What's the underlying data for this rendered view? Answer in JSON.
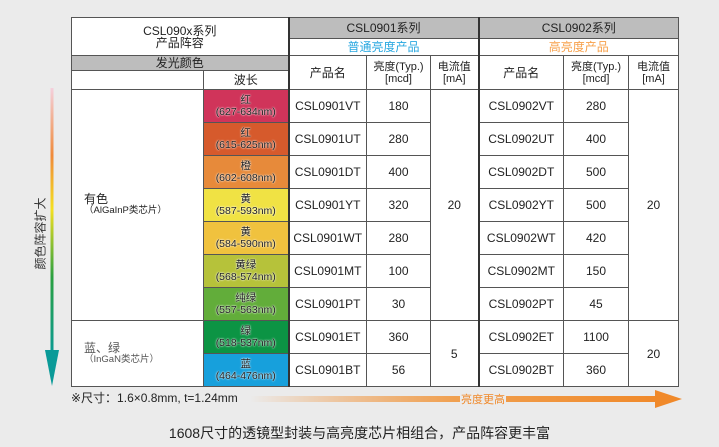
{
  "header": {
    "lineup_title": "CSL090x系列",
    "lineup_sub": "产品阵容",
    "color_label": "发光颜色",
    "wavelength_label": "波长",
    "series1": {
      "name": "CSL0901系列",
      "sub": "普通亮度产品",
      "sub_color": "#29a8e0"
    },
    "series2": {
      "name": "CSL0902系列",
      "sub": "高亮度产品",
      "sub_color": "#f7a04a"
    },
    "col_product": "产品名",
    "col_brightness": "亮度(Typ.)",
    "col_brightness_unit": "[mcd]",
    "col_current": "电流值",
    "col_current_unit": "[mA]"
  },
  "groups": [
    {
      "name": "有色",
      "chip": "（AlGaInP类芯片）"
    },
    {
      "name": "蓝、绿",
      "chip": "（InGaN类芯片）"
    }
  ],
  "rows": [
    {
      "color": "红",
      "wl": "(627-634nm)",
      "bg": "#d0345a",
      "p1": "CSL0901VT",
      "b1": "180",
      "p2": "CSL0902VT",
      "b2": "280"
    },
    {
      "color": "红",
      "wl": "(615-625nm)",
      "bg": "#d65a2c",
      "p1": "CSL0901UT",
      "b1": "280",
      "p2": "CSL0902UT",
      "b2": "400"
    },
    {
      "color": "橙",
      "wl": "(602-608nm)",
      "bg": "#e78a3a",
      "p1": "CSL0901DT",
      "b1": "400",
      "p2": "CSL0902DT",
      "b2": "500"
    },
    {
      "color": "黄",
      "wl": "(587-593nm)",
      "bg": "#f0e244",
      "p1": "CSL0901YT",
      "b1": "320",
      "p2": "CSL0902YT",
      "b2": "500"
    },
    {
      "color": "黄",
      "wl": "(584-590nm)",
      "bg": "#f0c23e",
      "p1": "CSL0901WT",
      "b1": "280",
      "p2": "CSL0902WT",
      "b2": "420"
    },
    {
      "color": "黄绿",
      "wl": "(568-574nm)",
      "bg": "#b6c23a",
      "p1": "CSL0901MT",
      "b1": "100",
      "p2": "CSL0902MT",
      "b2": "150"
    },
    {
      "color": "纯绿",
      "wl": "(557-563nm)",
      "bg": "#62ad3a",
      "p1": "CSL0901PT",
      "b1": "30",
      "p2": "CSL0902PT",
      "b2": "45"
    },
    {
      "color": "绿",
      "wl": "(518-537nm)",
      "bg": "#0c9444",
      "p1": "CSL0901ET",
      "b1": "360",
      "p2": "CSL0902ET",
      "b2": "1100"
    },
    {
      "color": "蓝",
      "wl": "(464-476nm)",
      "bg": "#17a0dc",
      "p1": "CSL0901BT",
      "b1": "56",
      "p2": "CSL0902BT",
      "b2": "360"
    }
  ],
  "currents": {
    "s1_g1": "20",
    "s1_g2": "5",
    "s2_g1": "20",
    "s2_g2": "20"
  },
  "side_label": "颜色阵容扩大",
  "note": "※尺寸：1.6×0.8mm, t=1.24mm",
  "brightness_arrow": "亮度更高",
  "caption": "1608尺寸的透镜型封装与高亮度芯片相组合，产品阵容更丰富"
}
